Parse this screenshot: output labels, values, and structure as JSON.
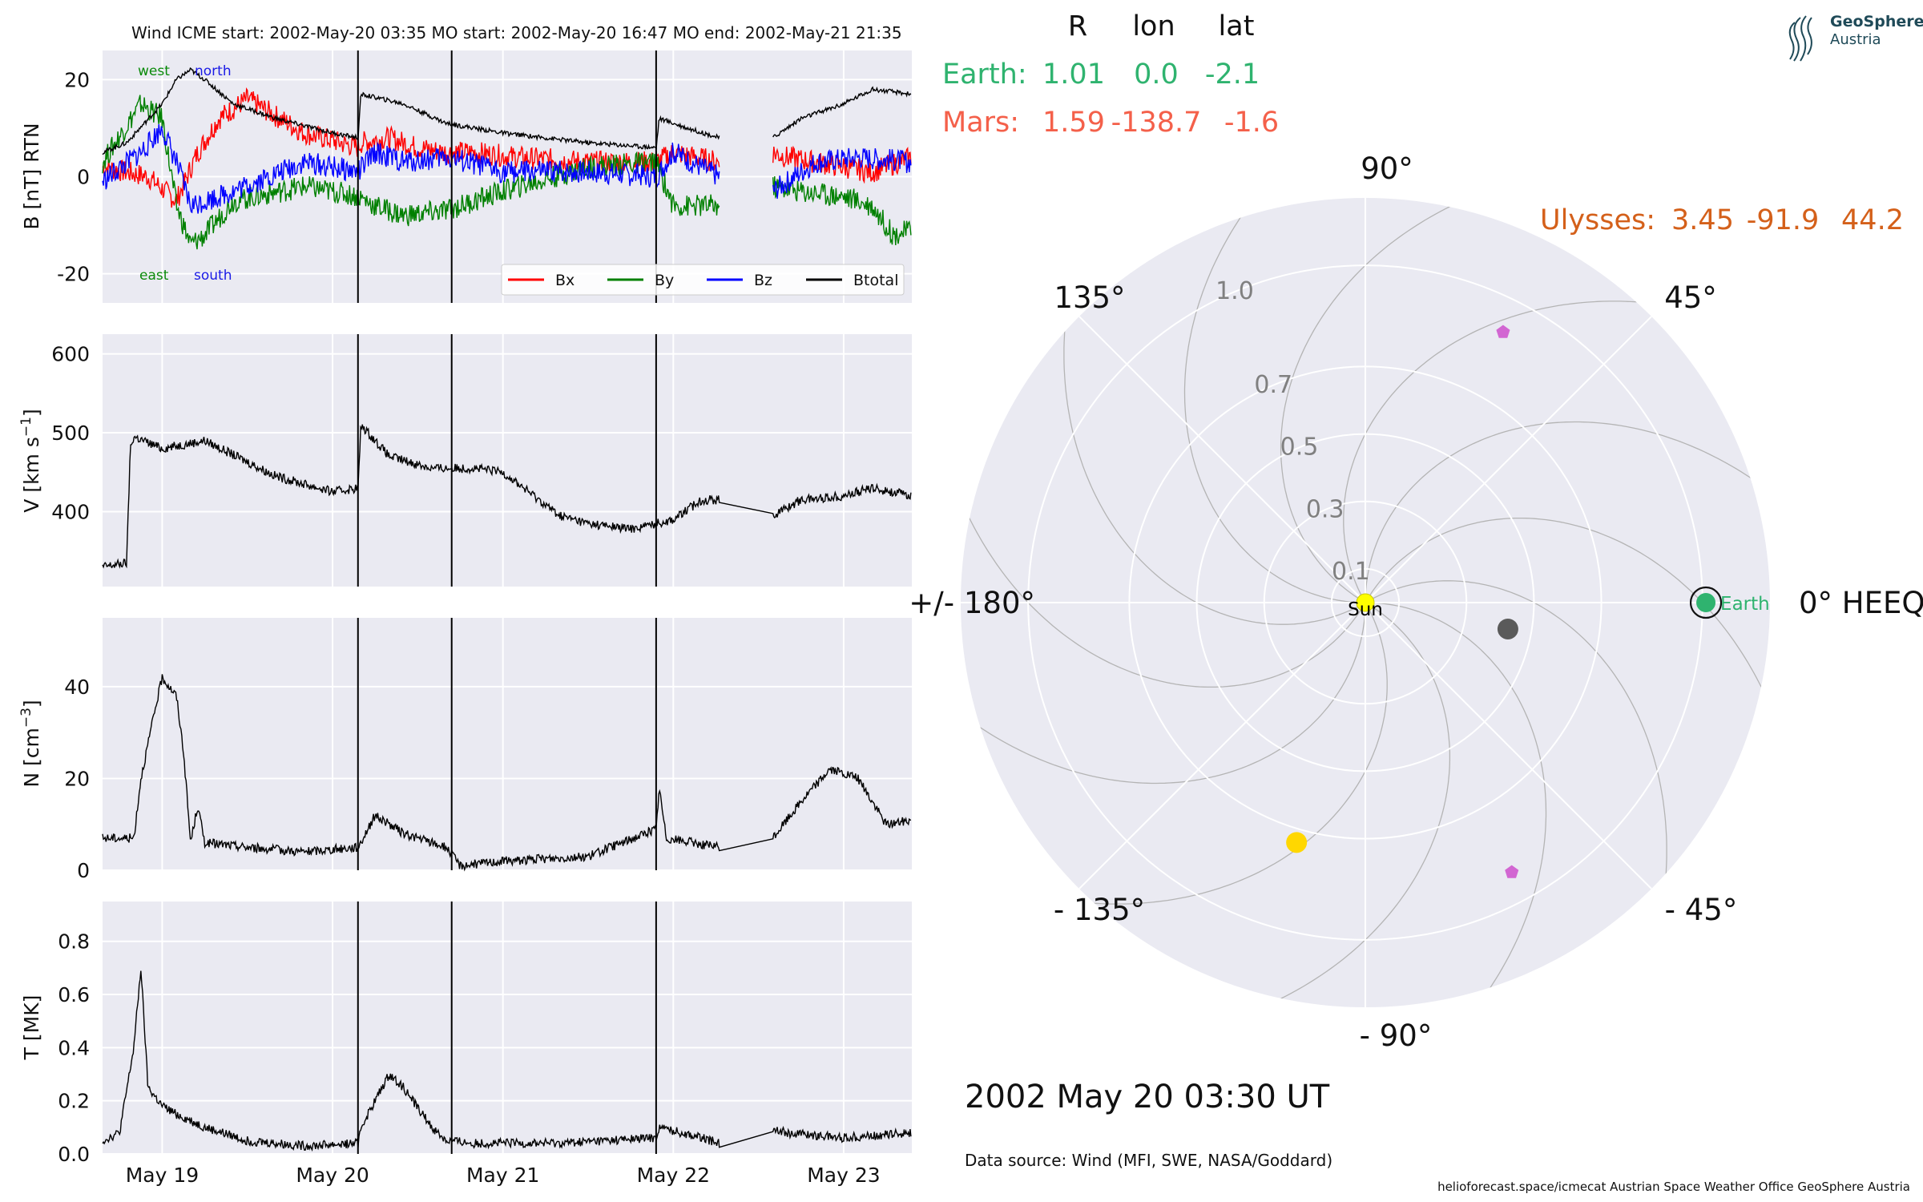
{
  "chart_data": [
    {
      "type": "line",
      "title": "Wind    ICME start: 2002-May-20 03:35   MO start: 2002-May-20 16:47   MO end: 2002-May-21 21:35",
      "spacecraft": "Wind",
      "events": {
        "icme_start": "2002-May-20 03:35",
        "mo_start": "2002-May-20 16:47",
        "mo_end": "2002-May-21 21:35",
        "event_lines_hours_after_may19": [
          27.58,
          40.78,
          69.58
        ]
      },
      "x_axis": {
        "tick_labels": [
          "May 19",
          "May 20",
          "May 21",
          "May 22",
          "May 23"
        ],
        "tick_hours_after_may19": [
          0,
          24,
          48,
          72,
          96
        ],
        "xlim_hours_after_may19": [
          -8.4,
          105.6
        ]
      },
      "data_gap_hours_after_may19": [
        78.5,
        86
      ],
      "panels": [
        {
          "name": "B",
          "ylabel": "B [nT] RTN",
          "ylim": [
            -26,
            26
          ],
          "yticks": [
            -20,
            0,
            20
          ],
          "annotations": {
            "west": "west",
            "north": "north",
            "east": "east",
            "south": "south"
          },
          "legend": {
            "placement": "bottom-right",
            "entries": [
              "Bx",
              "By",
              "Bz",
              "Btotal"
            ]
          },
          "series": [
            {
              "name": "Bx",
              "color": "#ff0000",
              "x": [
                -8.4,
                -2,
                2,
                5,
                8,
                12,
                20,
                27.6,
                28,
                32,
                36,
                40,
                44,
                50,
                60,
                66,
                69.6,
                72,
                78.5,
                86,
                88,
                92,
                96,
                100,
                105.6
              ],
              "y": [
                2,
                0,
                -5,
                5,
                12,
                16,
                9,
                6,
                7,
                8,
                6,
                5,
                5,
                4,
                3,
                3,
                3,
                5,
                3,
                5,
                4,
                3,
                2,
                1,
                4
              ]
            },
            {
              "name": "By",
              "color": "#008000",
              "x": [
                -8.4,
                -3,
                0,
                2,
                4,
                6,
                10,
                20,
                27.6,
                30,
                34,
                40,
                48,
                60,
                69.6,
                72,
                78.5,
                86,
                90,
                96,
                100,
                103,
                105.6
              ],
              "y": [
                3,
                15,
                12,
                -6,
                -14,
                -12,
                -5,
                -2,
                -4,
                -6,
                -8,
                -7,
                -3,
                2,
                3,
                -6,
                -6,
                -2,
                -3,
                -4,
                -6,
                -12,
                -11
              ]
            },
            {
              "name": "Bz",
              "color": "#0000ff",
              "x": [
                -8.4,
                -3,
                0,
                2,
                4,
                6,
                10,
                20,
                27.6,
                30,
                34,
                40,
                48,
                60,
                69.6,
                72,
                78.5,
                86,
                92,
                98,
                105.6
              ],
              "y": [
                -1,
                5,
                10,
                3,
                -6,
                -5,
                -3,
                3,
                1,
                5,
                3,
                4,
                1,
                1,
                0,
                5,
                0,
                -3,
                3,
                4,
                3
              ]
            },
            {
              "name": "Btotal",
              "color": "#000000",
              "x": [
                -8.4,
                -5,
                0,
                2,
                4,
                6,
                10,
                16,
                24,
                27.6,
                28,
                34,
                40,
                48,
                60,
                69.6,
                70,
                74,
                78.5,
                86,
                90,
                96,
                100,
                105.6
              ],
              "y": [
                5,
                7,
                15,
                20,
                22,
                20,
                15,
                12,
                9,
                8,
                17,
                15,
                11,
                9,
                7,
                6,
                12,
                10,
                8,
                8,
                12,
                15,
                18,
                17
              ]
            }
          ]
        },
        {
          "name": "V",
          "ylabel": "V [km s^-1]",
          "ylim": [
            305,
            625
          ],
          "yticks": [
            400,
            500,
            600
          ],
          "series": [
            {
              "name": "V",
              "color": "#000000",
              "x": [
                -8.4,
                -5,
                -4.5,
                -4,
                0,
                6,
                16,
                24,
                27.6,
                28,
                32,
                38,
                44,
                48,
                56,
                60,
                66,
                69.6,
                72,
                76,
                78.5,
                86,
                90,
                96,
                100,
                105.6
              ],
              "y": [
                330,
                335,
                480,
                495,
                480,
                490,
                445,
                425,
                430,
                510,
                470,
                455,
                455,
                450,
                395,
                385,
                378,
                385,
                390,
                415,
                415,
                395,
                415,
                420,
                430,
                420
              ]
            }
          ]
        },
        {
          "name": "N",
          "ylabel": "N [cm^-3]",
          "ylim": [
            0,
            55
          ],
          "yticks": [
            0,
            20,
            40
          ],
          "series": [
            {
              "name": "N",
              "color": "#000000",
              "x": [
                -8.4,
                -4,
                -3,
                -1,
                0,
                2,
                3,
                4,
                5,
                6,
                12,
                20,
                27.6,
                30,
                34,
                40,
                42,
                48,
                60,
                69.6,
                70,
                71,
                78.5,
                86,
                90,
                94,
                98,
                102,
                105.6
              ],
              "y": [
                7,
                7,
                20,
                35,
                42,
                38,
                26,
                6,
                14,
                6,
                5,
                4,
                5,
                12,
                8,
                5,
                1,
                2,
                3,
                9,
                18,
                7,
                5,
                7,
                15,
                22,
                20,
                10,
                11
              ]
            }
          ]
        },
        {
          "name": "T",
          "ylabel": "T [MK]",
          "ylim": [
            0,
            0.95
          ],
          "yticks": [
            0.0,
            0.2,
            0.4,
            0.6,
            0.8
          ],
          "series": [
            {
              "name": "T",
              "color": "#000000",
              "x": [
                -8.4,
                -6,
                -4,
                -3,
                -2,
                0,
                2,
                6,
                12,
                20,
                27.6,
                28,
                30,
                32,
                34,
                38,
                40,
                44,
                56,
                69.6,
                70,
                76,
                78.5,
                86,
                88,
                96,
                105.6
              ],
              "y": [
                0.05,
                0.08,
                0.4,
                0.7,
                0.25,
                0.18,
                0.15,
                0.1,
                0.05,
                0.03,
                0.04,
                0.1,
                0.2,
                0.3,
                0.25,
                0.1,
                0.05,
                0.04,
                0.04,
                0.06,
                0.1,
                0.06,
                0.04,
                0.1,
                0.08,
                0.06,
                0.08
              ]
            }
          ]
        }
      ]
    },
    {
      "type": "scatter",
      "projection": "polar",
      "coordinate_system": "HEEQ",
      "table": {
        "headers": [
          "R",
          "lon",
          "lat"
        ],
        "rows": [
          {
            "name": "Earth:",
            "r": "1.01",
            "lon": "0.0",
            "lat": "-2.1",
            "color": "#2fb36f"
          },
          {
            "name": "Mars:",
            "r": "1.59",
            "lon": "-138.7",
            "lat": "-1.6",
            "color": "#f4604a"
          },
          {
            "name": "Ulysses:",
            "r": "3.45",
            "lon": "-91.9",
            "lat": "44.2",
            "color": "#d4601a"
          }
        ]
      },
      "angle_labels": [
        {
          "deg": 90,
          "text": "90°"
        },
        {
          "deg": 45,
          "text": "45°"
        },
        {
          "deg": 0,
          "text": "0° HEEQ"
        },
        {
          "deg": -45,
          "text": "- 45°"
        },
        {
          "deg": -90,
          "text": "- 90°"
        },
        {
          "deg": -135,
          "text": "- 135°"
        },
        {
          "deg": 180,
          "text": "+/- 180°"
        },
        {
          "deg": 135,
          "text": "135°"
        }
      ],
      "radial_labels": [
        "0.1",
        "0.3",
        "0.5",
        "0.7",
        "1.0"
      ],
      "radial_ticks_au": [
        0.1,
        0.3,
        0.5,
        0.7,
        1.0
      ],
      "rmax_au": 1.2,
      "objects": [
        {
          "name": "Sun",
          "label": "Sun",
          "r": 0,
          "lon": 0,
          "color": "#ffff00",
          "marker": "circle"
        },
        {
          "name": "Earth",
          "label": "Earth",
          "r": 1.01,
          "lon": 0.0,
          "color": "#2fb36f",
          "marker": "circle-ringed"
        },
        {
          "name": "gray-object",
          "r": 0.43,
          "lon": -10.5,
          "color": "#5a5a5a",
          "marker": "circle"
        },
        {
          "name": "yellow-object",
          "r": 0.74,
          "lon": -106.0,
          "color": "#ffd700",
          "marker": "circle"
        },
        {
          "name": "magenta-pentagon-upper",
          "r": 0.9,
          "lon": 63.0,
          "color": "#d266d2",
          "marker": "pentagon"
        },
        {
          "name": "magenta-pentagon-lower",
          "r": 0.91,
          "lon": -61.5,
          "color": "#d266d2",
          "marker": "pentagon"
        }
      ],
      "timestamp": "2002 May 20  03:30 UT",
      "data_source": "Data source: Wind (MFI, SWE, NASA/Goddard)"
    }
  ],
  "branding": {
    "logo_line1": "GeoSphere",
    "logo_line2": "Austria",
    "footer": "helioforecast.space/icmecat   Austrian Space Weather Office   GeoSphere Austria"
  }
}
